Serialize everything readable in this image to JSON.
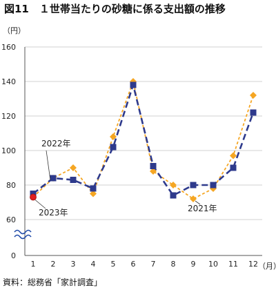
{
  "chart_data": {
    "type": "line",
    "title": "図11　１世帯当たりの砂糖に係る支出額の推移",
    "y_unit": "（円）",
    "x_unit": "（月）",
    "source": "資料：総務省「家計調査」",
    "categories": [
      "1",
      "2",
      "3",
      "4",
      "5",
      "6",
      "7",
      "8",
      "9",
      "10",
      "11",
      "12"
    ],
    "y_ticks": [
      "160",
      "140",
      "120",
      "100",
      "80",
      "60",
      "0"
    ],
    "ylim": [
      60,
      160
    ],
    "y_axis_break": true,
    "grid": "horizontal",
    "series": [
      {
        "name": "2021年",
        "color": "#f5a623",
        "marker": "diamond",
        "values": [
          73,
          84,
          90,
          75,
          108,
          140,
          88,
          80,
          72,
          78,
          97,
          132
        ]
      },
      {
        "name": "2022年",
        "color": "#2e3a8c",
        "marker": "square",
        "values": [
          75,
          84,
          83,
          78,
          102,
          138,
          91,
          74,
          80,
          80,
          90,
          122
        ]
      },
      {
        "name": "2023年",
        "color": "#e02020",
        "marker": "circle",
        "values": [
          73,
          null,
          null,
          null,
          null,
          null,
          null,
          null,
          null,
          null,
          null,
          null
        ]
      }
    ]
  }
}
